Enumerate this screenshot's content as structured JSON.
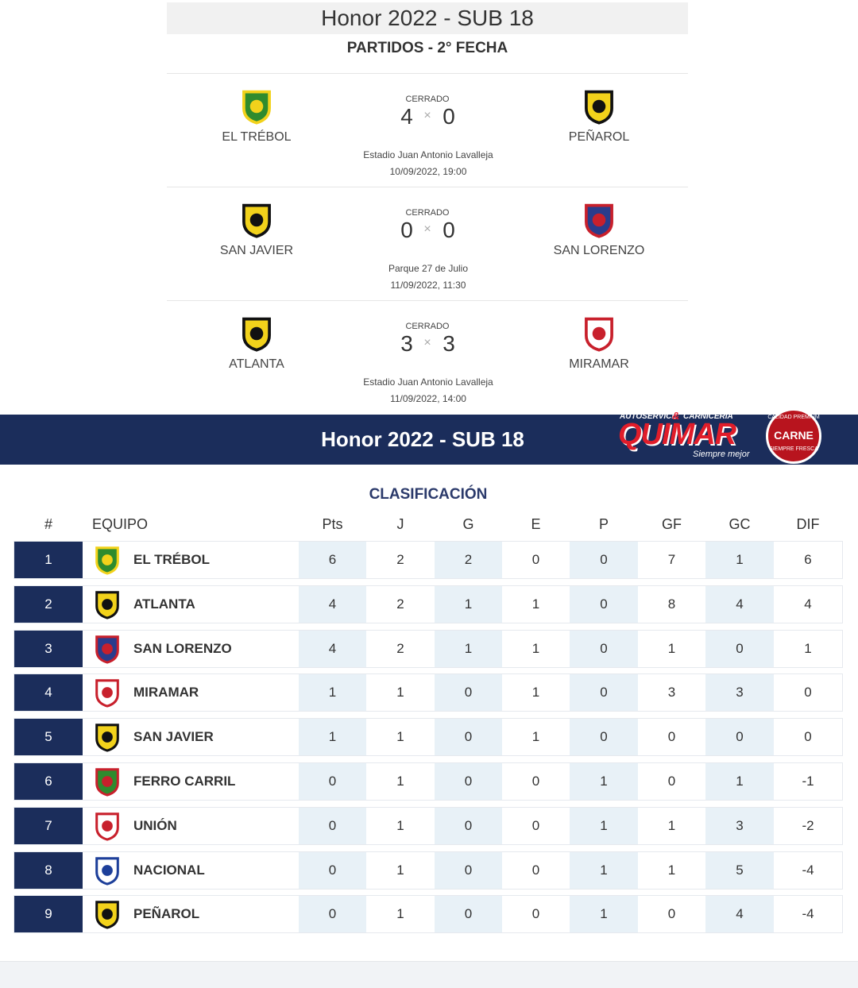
{
  "fixtures": {
    "title": "Honor 2022 - SUB 18",
    "subtitle": "PARTIDOS - 2° FECHA",
    "score_separator": "×",
    "matches": [
      {
        "home": "EL TRÉBOL",
        "away": "PEÑAROL",
        "status": "CERRADO",
        "home_score": 4,
        "away_score": 0,
        "venue": "Estadio Juan Antonio Lavalleja",
        "datetime": "10/09/2022, 19:00"
      },
      {
        "home": "SAN JAVIER",
        "away": "SAN LORENZO",
        "status": "CERRADO",
        "home_score": 0,
        "away_score": 0,
        "venue": "Parque 27 de Julio",
        "datetime": "11/09/2022, 11:30"
      },
      {
        "home": "ATLANTA",
        "away": "MIRAMAR",
        "status": "CERRADO",
        "home_score": 3,
        "away_score": 3,
        "venue": "Estadio Juan Antonio Lavalleja",
        "datetime": "11/09/2022, 14:00"
      }
    ]
  },
  "banner": {
    "title": "Honor 2022 - SUB 18",
    "sponsor": {
      "top_left": "AUTOSERVICE",
      "top_amp": "&",
      "top_right": "CARNICERIA",
      "name": "QUIMAR",
      "slogan": "Siempre mejor",
      "seal_top": "CALIDAD PREMIUM",
      "seal_mid": "CARNE",
      "seal_bottom": "SIEMPRE FRESCA"
    }
  },
  "table": {
    "title": "CLASIFICACIÓN",
    "columns": [
      "#",
      "EQUIPO",
      "Pts",
      "J",
      "G",
      "E",
      "P",
      "GF",
      "GC",
      "DIF"
    ],
    "rows": [
      [
        1,
        "EL TRÉBOL",
        6,
        2,
        2,
        0,
        0,
        7,
        1,
        6
      ],
      [
        2,
        "ATLANTA",
        4,
        2,
        1,
        1,
        0,
        8,
        4,
        4
      ],
      [
        3,
        "SAN LORENZO",
        4,
        2,
        1,
        1,
        0,
        1,
        0,
        1
      ],
      [
        4,
        "MIRAMAR",
        1,
        1,
        0,
        1,
        0,
        3,
        3,
        0
      ],
      [
        5,
        "SAN JAVIER",
        1,
        1,
        0,
        1,
        0,
        0,
        0,
        0
      ],
      [
        6,
        "FERRO CARRIL",
        0,
        1,
        0,
        0,
        1,
        0,
        1,
        -1
      ],
      [
        7,
        "UNIÓN",
        0,
        1,
        0,
        0,
        1,
        1,
        3,
        -2
      ],
      [
        8,
        "NACIONAL",
        0,
        1,
        0,
        0,
        1,
        1,
        5,
        -4
      ],
      [
        9,
        "PEÑAROL",
        0,
        1,
        0,
        0,
        1,
        0,
        4,
        -4
      ]
    ]
  }
}
